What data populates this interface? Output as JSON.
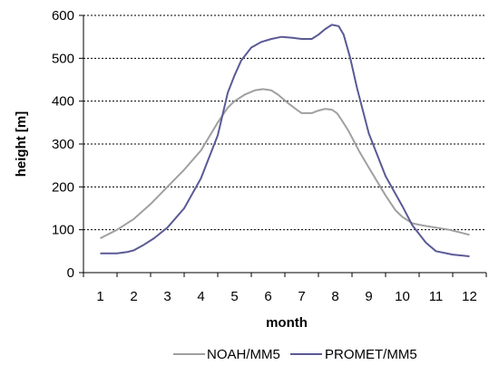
{
  "chart_data": {
    "type": "line",
    "xlabel": "month",
    "ylabel": "height  [m]",
    "xlim": [
      0.5,
      12.5
    ],
    "ylim": [
      0,
      600
    ],
    "x_ticks": [
      1,
      2,
      3,
      4,
      5,
      6,
      7,
      8,
      9,
      10,
      11,
      12
    ],
    "y_ticks": [
      0,
      100,
      200,
      300,
      400,
      500,
      600
    ],
    "grid": "horizontal dashed",
    "legend": "bottom",
    "series": [
      {
        "name": "NOAH/MM5",
        "color": "#a0a0a0",
        "points": [
          [
            1.0,
            80
          ],
          [
            1.5,
            100
          ],
          [
            2.0,
            125
          ],
          [
            2.5,
            160
          ],
          [
            3.0,
            200
          ],
          [
            3.5,
            240
          ],
          [
            4.0,
            285
          ],
          [
            4.5,
            350
          ],
          [
            4.8,
            385
          ],
          [
            5.0,
            400
          ],
          [
            5.3,
            415
          ],
          [
            5.6,
            425
          ],
          [
            5.85,
            428
          ],
          [
            6.1,
            425
          ],
          [
            6.3,
            415
          ],
          [
            6.6,
            395
          ],
          [
            6.85,
            380
          ],
          [
            7.0,
            372
          ],
          [
            7.3,
            372
          ],
          [
            7.5,
            378
          ],
          [
            7.7,
            382
          ],
          [
            7.9,
            380
          ],
          [
            8.05,
            372
          ],
          [
            8.2,
            355
          ],
          [
            8.4,
            330
          ],
          [
            8.7,
            285
          ],
          [
            9.0,
            245
          ],
          [
            9.5,
            180
          ],
          [
            9.8,
            145
          ],
          [
            10.0,
            130
          ],
          [
            10.3,
            115
          ],
          [
            10.6,
            110
          ],
          [
            11.0,
            105
          ],
          [
            11.4,
            100
          ],
          [
            12.0,
            88
          ]
        ]
      },
      {
        "name": "PROMET/MM5",
        "color": "#5a5a96",
        "points": [
          [
            1.0,
            45
          ],
          [
            1.5,
            45
          ],
          [
            1.8,
            48
          ],
          [
            2.0,
            52
          ],
          [
            2.3,
            65
          ],
          [
            2.6,
            80
          ],
          [
            3.0,
            105
          ],
          [
            3.5,
            150
          ],
          [
            4.0,
            220
          ],
          [
            4.2,
            260
          ],
          [
            4.5,
            320
          ],
          [
            4.8,
            420
          ],
          [
            5.0,
            460
          ],
          [
            5.2,
            495
          ],
          [
            5.5,
            525
          ],
          [
            5.8,
            538
          ],
          [
            6.1,
            545
          ],
          [
            6.4,
            550
          ],
          [
            6.7,
            548
          ],
          [
            7.0,
            545
          ],
          [
            7.3,
            545
          ],
          [
            7.5,
            555
          ],
          [
            7.7,
            568
          ],
          [
            7.9,
            578
          ],
          [
            8.1,
            575
          ],
          [
            8.25,
            555
          ],
          [
            8.45,
            500
          ],
          [
            8.65,
            430
          ],
          [
            9.0,
            325
          ],
          [
            9.5,
            225
          ],
          [
            10.0,
            155
          ],
          [
            10.3,
            110
          ],
          [
            10.7,
            70
          ],
          [
            11.0,
            50
          ],
          [
            11.5,
            42
          ],
          [
            12.0,
            38
          ]
        ]
      }
    ]
  }
}
